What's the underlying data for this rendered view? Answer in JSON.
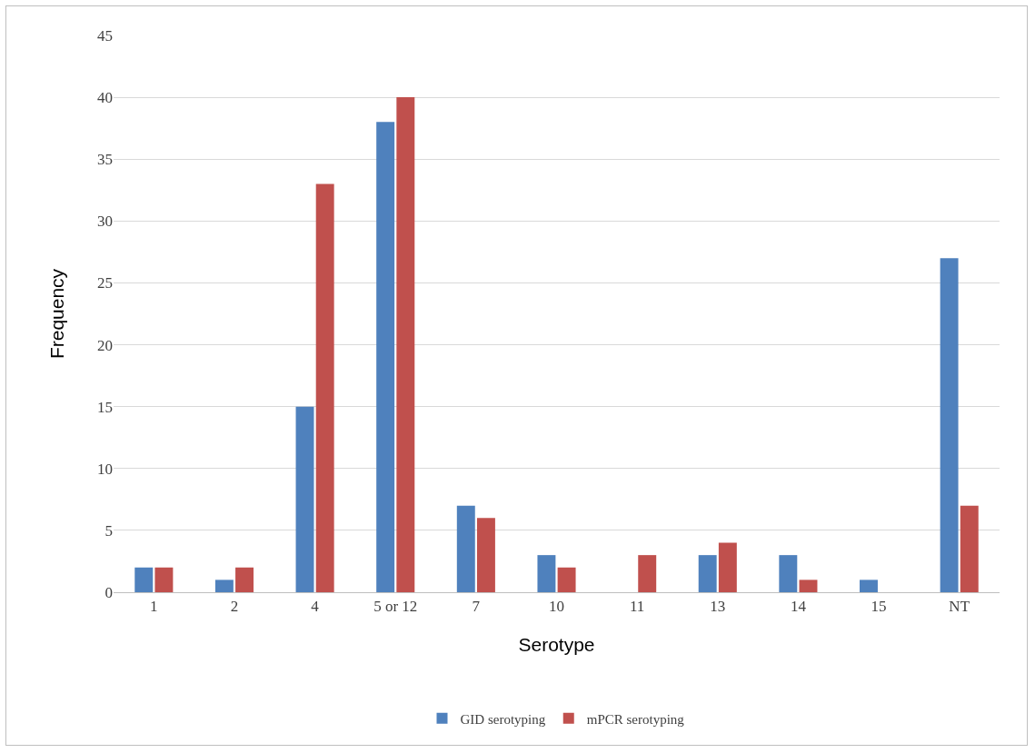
{
  "chart_data": {
    "type": "bar",
    "xlabel": "Serotype",
    "ylabel": "Frequency",
    "categories": [
      "1",
      "2",
      "4",
      "5 or 12",
      "7",
      "10",
      "11",
      "13",
      "14",
      "15",
      "NT"
    ],
    "series": [
      {
        "name": "GID serotyping",
        "color": "#4f81bd",
        "values": [
          2,
          1,
          15,
          38,
          7,
          3,
          0,
          3,
          3,
          1,
          27
        ]
      },
      {
        "name": "mPCR serotyping",
        "color": "#c0504d",
        "values": [
          2,
          2,
          33,
          40,
          6,
          2,
          3,
          4,
          1,
          0,
          7
        ]
      }
    ],
    "ylim": [
      0,
      45
    ],
    "yticks": [
      0,
      5,
      10,
      15,
      20,
      25,
      30,
      35,
      40,
      45
    ],
    "grid": "y",
    "legend": "bottom"
  }
}
